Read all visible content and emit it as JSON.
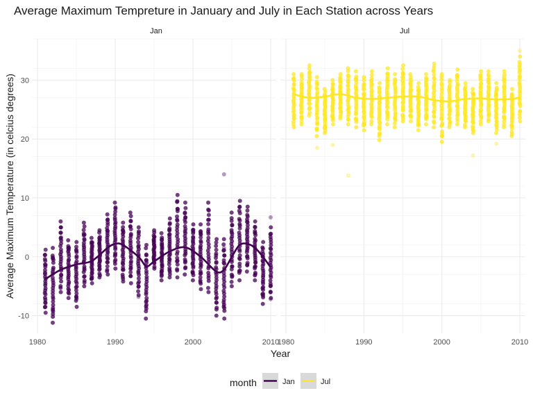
{
  "chart_data": {
    "type": "scatter",
    "title": "Average Maximum Tempreture in January and July in Each Station across Years",
    "xlabel": "Year",
    "ylabel": "Average Maximum Temperature (in celcius degrees)",
    "xlim": [
      1980,
      2010
    ],
    "ylim": [
      -13,
      37
    ],
    "x_ticks": [
      1980,
      1990,
      2000,
      2010
    ],
    "x_tick_labels": [
      "1980",
      "1990",
      "2000",
      "2010"
    ],
    "y_ticks": [
      -10,
      0,
      10,
      20,
      30
    ],
    "y_tick_labels": [
      "-10",
      "0",
      "10",
      "20",
      "30"
    ],
    "grid": true,
    "legend": {
      "title": "month",
      "placement": "bottom",
      "entries": [
        "Jan",
        "Jul"
      ]
    },
    "facets": [
      {
        "label": "Jan",
        "color": "#440154",
        "point_ranges": [
          {
            "year": 1981,
            "min": -9.5,
            "max": 1.2
          },
          {
            "year": 1982,
            "min": -11.2,
            "max": 1.5
          },
          {
            "year": 1983,
            "min": -6.0,
            "max": 6.0
          },
          {
            "year": 1984,
            "min": -7.0,
            "max": 2.8
          },
          {
            "year": 1985,
            "min": -8.5,
            "max": 2.5
          },
          {
            "year": 1986,
            "min": -5.0,
            "max": 5.8
          },
          {
            "year": 1987,
            "min": -4.5,
            "max": 3.2
          },
          {
            "year": 1988,
            "min": -3.5,
            "max": 4.5
          },
          {
            "year": 1989,
            "min": -3.0,
            "max": 7.2
          },
          {
            "year": 1990,
            "min": -2.0,
            "max": 9.2
          },
          {
            "year": 1991,
            "min": -4.2,
            "max": 5.8
          },
          {
            "year": 1992,
            "min": -4.5,
            "max": 7.5
          },
          {
            "year": 1993,
            "min": -6.5,
            "max": 5.0
          },
          {
            "year": 1994,
            "min": -10.5,
            "max": 2.0
          },
          {
            "year": 1995,
            "min": -2.0,
            "max": 4.5
          },
          {
            "year": 1996,
            "min": -4.0,
            "max": 4.0
          },
          {
            "year": 1997,
            "min": -3.5,
            "max": 6.5
          },
          {
            "year": 1998,
            "min": -3.5,
            "max": 10.5
          },
          {
            "year": 1999,
            "min": -3.0,
            "max": 9.2
          },
          {
            "year": 2000,
            "min": -4.0,
            "max": 5.5
          },
          {
            "year": 2001,
            "min": -5.5,
            "max": 5.5
          },
          {
            "year": 2002,
            "min": -6.0,
            "max": 9.2
          },
          {
            "year": 2003,
            "min": -10.0,
            "max": 3.0
          },
          {
            "year": 2004,
            "min": -10.5,
            "max": 3.0
          },
          {
            "year": 2005,
            "min": -5.0,
            "max": 7.5
          },
          {
            "year": 2006,
            "min": -4.0,
            "max": 9.5
          },
          {
            "year": 2007,
            "min": -2.5,
            "max": 8.5
          },
          {
            "year": 2008,
            "min": -4.0,
            "max": 6.0
          },
          {
            "year": 2009,
            "min": -8.0,
            "max": 2.5
          },
          {
            "year": 2010,
            "min": -7.0,
            "max": 5.0
          }
        ],
        "outliers": [
          {
            "year": 2004,
            "value": 14.0
          },
          {
            "year": 2010,
            "value": 6.7
          },
          {
            "year": 2004,
            "value": 1.5
          },
          {
            "year": 1993,
            "value": -6.8
          },
          {
            "year": 2010,
            "value": -7.2
          }
        ],
        "smooth_line": [
          {
            "year": 1981,
            "value": -3.8
          },
          {
            "year": 1983,
            "value": -2.2
          },
          {
            "year": 1985,
            "value": -1.3
          },
          {
            "year": 1987,
            "value": -0.7
          },
          {
            "year": 1989,
            "value": 1.5
          },
          {
            "year": 1990,
            "value": 2.2
          },
          {
            "year": 1991,
            "value": 2.0
          },
          {
            "year": 1993,
            "value": 0.0
          },
          {
            "year": 1994,
            "value": -1.6
          },
          {
            "year": 1995,
            "value": -0.8
          },
          {
            "year": 1997,
            "value": 0.9
          },
          {
            "year": 1999,
            "value": 1.6
          },
          {
            "year": 2001,
            "value": 0.0
          },
          {
            "year": 2003,
            "value": -2.5
          },
          {
            "year": 2004,
            "value": -2.2
          },
          {
            "year": 2005,
            "value": 0.0
          },
          {
            "year": 2006,
            "value": 2.0
          },
          {
            "year": 2007,
            "value": 2.2
          },
          {
            "year": 2008,
            "value": 1.5
          },
          {
            "year": 2009,
            "value": 0.0
          },
          {
            "year": 2010,
            "value": -1.8
          }
        ]
      },
      {
        "label": "Jul",
        "color": "#fde725",
        "point_ranges": [
          {
            "year": 1981,
            "min": 22.0,
            "max": 31.0
          },
          {
            "year": 1982,
            "min": 22.5,
            "max": 31.0
          },
          {
            "year": 1983,
            "min": 24.0,
            "max": 32.5
          },
          {
            "year": 1984,
            "min": 20.5,
            "max": 30.5
          },
          {
            "year": 1985,
            "min": 21.0,
            "max": 28.5
          },
          {
            "year": 1986,
            "min": 22.5,
            "max": 30.0
          },
          {
            "year": 1987,
            "min": 23.5,
            "max": 31.0
          },
          {
            "year": 1988,
            "min": 22.5,
            "max": 32.0
          },
          {
            "year": 1989,
            "min": 22.0,
            "max": 31.5
          },
          {
            "year": 1990,
            "min": 21.5,
            "max": 30.5
          },
          {
            "year": 1991,
            "min": 22.5,
            "max": 31.5
          },
          {
            "year": 1992,
            "min": 19.8,
            "max": 29.5
          },
          {
            "year": 1993,
            "min": 22.5,
            "max": 32.0
          },
          {
            "year": 1994,
            "min": 22.0,
            "max": 31.0
          },
          {
            "year": 1995,
            "min": 23.0,
            "max": 32.5
          },
          {
            "year": 1996,
            "min": 23.0,
            "max": 31.0
          },
          {
            "year": 1997,
            "min": 21.5,
            "max": 29.5
          },
          {
            "year": 1998,
            "min": 22.5,
            "max": 31.0
          },
          {
            "year": 1999,
            "min": 22.0,
            "max": 32.8
          },
          {
            "year": 2000,
            "min": 19.5,
            "max": 31.0
          },
          {
            "year": 2001,
            "min": 22.0,
            "max": 30.0
          },
          {
            "year": 2002,
            "min": 22.5,
            "max": 31.8
          },
          {
            "year": 2003,
            "min": 22.0,
            "max": 29.5
          },
          {
            "year": 2004,
            "min": 21.0,
            "max": 28.5
          },
          {
            "year": 2005,
            "min": 22.5,
            "max": 31.5
          },
          {
            "year": 2006,
            "min": 23.0,
            "max": 31.5
          },
          {
            "year": 2007,
            "min": 21.0,
            "max": 29.5
          },
          {
            "year": 2008,
            "min": 22.0,
            "max": 31.5
          },
          {
            "year": 2009,
            "min": 20.5,
            "max": 28.5
          },
          {
            "year": 2010,
            "min": 23.0,
            "max": 34.0
          }
        ],
        "outliers": [
          {
            "year": 1984,
            "value": 18.5
          },
          {
            "year": 1988,
            "value": 13.8
          },
          {
            "year": 2004,
            "value": 17.2
          },
          {
            "year": 2007,
            "value": 19.2
          },
          {
            "year": 1986,
            "value": 19.0
          },
          {
            "year": 2010,
            "value": 35.0
          }
        ],
        "smooth_line": [
          {
            "year": 1981,
            "value": 27.6
          },
          {
            "year": 1983,
            "value": 27.0
          },
          {
            "year": 1985,
            "value": 27.2
          },
          {
            "year": 1987,
            "value": 27.6
          },
          {
            "year": 1989,
            "value": 27.0
          },
          {
            "year": 1991,
            "value": 26.8
          },
          {
            "year": 1993,
            "value": 27.0
          },
          {
            "year": 1995,
            "value": 27.2
          },
          {
            "year": 1997,
            "value": 27.2
          },
          {
            "year": 1999,
            "value": 26.6
          },
          {
            "year": 2001,
            "value": 26.4
          },
          {
            "year": 2003,
            "value": 26.8
          },
          {
            "year": 2005,
            "value": 26.9
          },
          {
            "year": 2007,
            "value": 26.7
          },
          {
            "year": 2009,
            "value": 26.8
          },
          {
            "year": 2010,
            "value": 27.1
          }
        ]
      }
    ]
  }
}
